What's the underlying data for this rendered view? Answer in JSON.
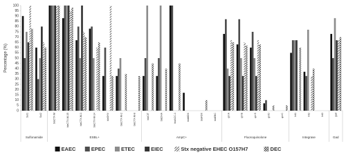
{
  "chart_data": {
    "type": "bar",
    "y_label": "Percentage (%)",
    "groups": [
      {
        "label": "Sulfonamide",
        "categories": [
          "Sul1",
          "Sul2"
        ]
      },
      {
        "label": "ESBL+",
        "categories": [
          "blaCTX-M",
          "blaCTX-M-15",
          "blaCTX-M-1",
          "blaCTX-M-14",
          "blaSHV",
          "blaCTX-M-2",
          "blaCTX-M-8"
        ]
      },
      {
        "label": "AmpC+",
        "categories": [
          "blaCIT",
          "blaDHA",
          "blaACC-1",
          "blaMOX",
          "blaFOX",
          "blaEBC"
        ]
      },
      {
        "label": "Fluoroquinolone",
        "categories": [
          "qnrA",
          "qnrB",
          "qnrS",
          "qnrD",
          "qnrC"
        ]
      },
      {
        "label": "Integrase",
        "categories": [
          "Int1",
          "Int2",
          "Int3"
        ]
      },
      {
        "label": "Gad",
        "categories": [
          "gad"
        ]
      }
    ],
    "series": [
      {
        "name": "EAEC",
        "color": "#111111",
        "pattern": "solid",
        "values": [
          90,
          60,
          100,
          88,
          67,
          78,
          33,
          33,
          0,
          33,
          33,
          100,
          17,
          0,
          0,
          73,
          63,
          60,
          7,
          0,
          55,
          37,
          0,
          73
        ]
      },
      {
        "name": "EPEC",
        "color": "#4d4d4d",
        "pattern": "solid",
        "values": [
          50,
          30,
          100,
          100,
          80,
          80,
          60,
          40,
          0,
          50,
          50,
          100,
          0,
          0,
          0,
          87,
          87,
          75,
          10,
          0,
          67,
          33,
          0,
          50
        ]
      },
      {
        "name": "ETEC",
        "color": "#8c8c8c",
        "pattern": "solid",
        "values": [
          75,
          50,
          100,
          100,
          50,
          50,
          0,
          50,
          0,
          100,
          100,
          0,
          0,
          0,
          0,
          40,
          50,
          50,
          0,
          0,
          67,
          77,
          0,
          88
        ]
      },
      {
        "name": "EIEC",
        "color": "#333333",
        "pattern": "solid",
        "values": [
          65,
          80,
          100,
          100,
          100,
          0,
          0,
          0,
          0,
          0,
          0,
          0,
          0,
          0,
          0,
          33,
          33,
          33,
          0,
          0,
          67,
          0,
          0,
          67
        ]
      },
      {
        "name": "Stx negative EHEC O157H7",
        "color": "#222222",
        "pattern": "diagonal",
        "values": [
          100,
          65,
          100,
          95,
          75,
          60,
          100,
          0,
          0,
          0,
          0,
          0,
          0,
          0,
          0,
          67,
          65,
          67,
          0,
          0,
          0,
          33,
          0,
          67
        ]
      },
      {
        "name": "DEC",
        "color": "#222222",
        "pattern": "cross",
        "values": [
          78,
          60,
          100,
          98,
          70,
          65,
          33,
          35,
          33,
          45,
          40,
          45,
          0,
          10,
          0,
          65,
          62,
          63,
          5,
          5,
          60,
          40,
          0,
          70
        ]
      }
    ],
    "ylim": [
      0,
      100
    ],
    "yticks": [
      0,
      5,
      10,
      15,
      20,
      25,
      30,
      35,
      40,
      45,
      50,
      55,
      60,
      65,
      70,
      75,
      80,
      85,
      90,
      95,
      100
    ],
    "grid": false
  }
}
